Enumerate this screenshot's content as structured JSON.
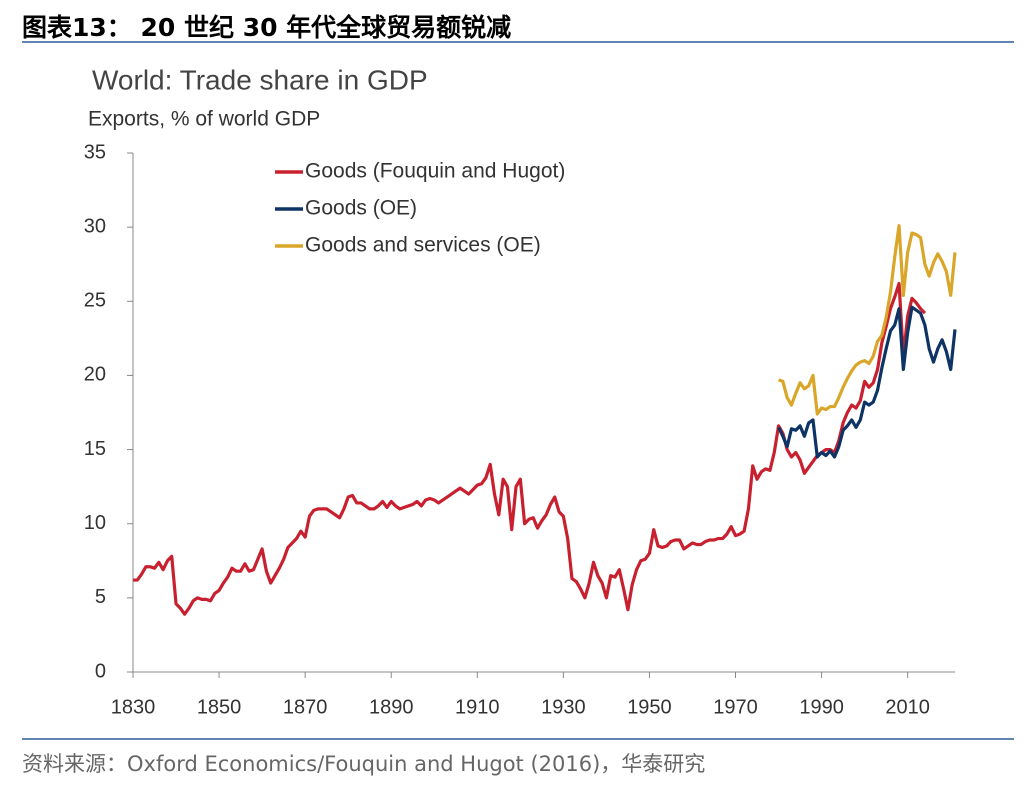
{
  "header": {
    "title": "图表13： 20 世纪 30 年代全球贸易额锐减"
  },
  "footer": {
    "source": "资料来源：Oxford Economics/Fouquin and Hugot (2016)，华泰研究"
  },
  "chart_data": {
    "type": "line",
    "title": "World: Trade share in GDP",
    "subtitle": "Exports, % of world GDP",
    "xlim": [
      1830,
      2021
    ],
    "xticks": [
      1830,
      1850,
      1870,
      1890,
      1910,
      1930,
      1950,
      1970,
      1990,
      2010
    ],
    "ylim": [
      0,
      35
    ],
    "yticks": [
      0,
      5,
      10,
      15,
      20,
      25,
      30,
      35
    ],
    "grid": false,
    "legend": "upper left",
    "series": [
      {
        "name": "Goods (Fouquin and Hugot)",
        "color": "#c8202f",
        "x": [
          1830,
          1831,
          1832,
          1833,
          1834,
          1835,
          1836,
          1837,
          1838,
          1839,
          1840,
          1841,
          1842,
          1843,
          1844,
          1845,
          1846,
          1847,
          1848,
          1849,
          1850,
          1851,
          1852,
          1853,
          1854,
          1855,
          1856,
          1857,
          1858,
          1859,
          1860,
          1861,
          1862,
          1863,
          1864,
          1865,
          1866,
          1867,
          1868,
          1869,
          1870,
          1871,
          1872,
          1873,
          1874,
          1875,
          1876,
          1877,
          1878,
          1879,
          1880,
          1881,
          1882,
          1883,
          1884,
          1885,
          1886,
          1887,
          1888,
          1889,
          1890,
          1891,
          1892,
          1893,
          1894,
          1895,
          1896,
          1897,
          1898,
          1899,
          1900,
          1901,
          1902,
          1903,
          1904,
          1905,
          1906,
          1907,
          1908,
          1909,
          1910,
          1911,
          1912,
          1913,
          1914,
          1915,
          1916,
          1917,
          1918,
          1919,
          1920,
          1921,
          1922,
          1923,
          1924,
          1925,
          1926,
          1927,
          1928,
          1929,
          1930,
          1931,
          1932,
          1933,
          1934,
          1935,
          1936,
          1937,
          1938,
          1939,
          1940,
          1941,
          1942,
          1943,
          1944,
          1945,
          1946,
          1947,
          1948,
          1949,
          1950,
          1951,
          1952,
          1953,
          1954,
          1955,
          1956,
          1957,
          1958,
          1959,
          1960,
          1961,
          1962,
          1963,
          1964,
          1965,
          1966,
          1967,
          1968,
          1969,
          1970,
          1971,
          1972,
          1973,
          1974,
          1975,
          1976,
          1977,
          1978,
          1979,
          1980,
          1981,
          1982,
          1983,
          1984,
          1985,
          1986,
          1987,
          1988,
          1989,
          1990,
          1991,
          1992,
          1993,
          1994,
          1995,
          1996,
          1997,
          1998,
          1999,
          2000,
          2001,
          2002,
          2003,
          2004,
          2005,
          2006,
          2007,
          2008,
          2009,
          2010,
          2011,
          2012,
          2013,
          2014
        ],
        "values": [
          6.2,
          6.2,
          6.6,
          7.1,
          7.1,
          7.0,
          7.4,
          6.9,
          7.5,
          7.8,
          4.6,
          4.3,
          3.9,
          4.3,
          4.8,
          5.0,
          4.9,
          4.9,
          4.8,
          5.3,
          5.5,
          6.0,
          6.4,
          7.0,
          6.8,
          6.8,
          7.3,
          6.8,
          6.9,
          7.6,
          8.3,
          6.8,
          6.0,
          6.5,
          7.0,
          7.6,
          8.4,
          8.7,
          9.0,
          9.5,
          9.1,
          10.5,
          10.9,
          11.0,
          11.0,
          11.0,
          10.8,
          10.6,
          10.4,
          11.0,
          11.8,
          11.9,
          11.4,
          11.4,
          11.2,
          11.0,
          11.0,
          11.2,
          11.5,
          11.1,
          11.5,
          11.2,
          11.0,
          11.1,
          11.2,
          11.3,
          11.5,
          11.2,
          11.6,
          11.7,
          11.6,
          11.4,
          11.6,
          11.8,
          12.0,
          12.2,
          12.4,
          12.2,
          12.0,
          12.3,
          12.6,
          12.7,
          13.1,
          14.0,
          12.0,
          10.6,
          13.0,
          12.5,
          9.6,
          12.5,
          13.0,
          10.0,
          10.3,
          10.4,
          9.7,
          10.2,
          10.6,
          11.3,
          11.8,
          10.8,
          10.5,
          9.0,
          6.3,
          6.1,
          5.6,
          5.0,
          6.0,
          7.4,
          6.5,
          6.0,
          5.0,
          6.5,
          6.4,
          6.9,
          5.6,
          4.2,
          5.9,
          6.9,
          7.5,
          7.6,
          8.0,
          9.6,
          8.5,
          8.4,
          8.5,
          8.8,
          8.9,
          8.9,
          8.3,
          8.5,
          8.7,
          8.6,
          8.6,
          8.8,
          8.9,
          8.9,
          9.0,
          9.0,
          9.3,
          9.8,
          9.2,
          9.3,
          9.5,
          11.0,
          13.9,
          13.0,
          13.5,
          13.7,
          13.6,
          14.8,
          16.6,
          16.1,
          15.0,
          14.5,
          14.8,
          14.3,
          13.4,
          13.8,
          14.2,
          14.6,
          14.8,
          15.0,
          15.0,
          14.8,
          15.6,
          16.8,
          17.5,
          18.0,
          17.8,
          18.3,
          19.6,
          19.2,
          19.5,
          20.4,
          22.2,
          23.3,
          24.5,
          25.3,
          26.2,
          21.3,
          24.0,
          25.2,
          24.9,
          24.5,
          24.2
        ]
      },
      {
        "name": "Goods (OE)",
        "color": "#0d3465",
        "x": [
          1980,
          1981,
          1982,
          1983,
          1984,
          1985,
          1986,
          1987,
          1988,
          1989,
          1990,
          1991,
          1992,
          1993,
          1994,
          1995,
          1996,
          1997,
          1998,
          1999,
          2000,
          2001,
          2002,
          2003,
          2004,
          2005,
          2006,
          2007,
          2008,
          2009,
          2010,
          2011,
          2012,
          2013,
          2014,
          2015,
          2016,
          2017,
          2018,
          2019,
          2020,
          2021
        ],
        "values": [
          16.5,
          15.9,
          15.2,
          16.4,
          16.3,
          16.6,
          15.9,
          16.8,
          17.0,
          14.5,
          14.8,
          14.6,
          14.9,
          14.5,
          15.2,
          16.3,
          16.6,
          17.0,
          16.5,
          17.0,
          18.2,
          18.0,
          18.2,
          19.0,
          20.5,
          21.8,
          23.0,
          23.4,
          24.5,
          20.4,
          22.9,
          24.6,
          24.4,
          24.2,
          23.4,
          21.8,
          20.9,
          21.8,
          22.4,
          21.6,
          20.4,
          23.1
        ]
      },
      {
        "name": "Goods and services (OE)",
        "color": "#d9a62a",
        "x": [
          1980,
          1981,
          1982,
          1983,
          1984,
          1985,
          1986,
          1987,
          1988,
          1989,
          1990,
          1991,
          1992,
          1993,
          1994,
          1995,
          1996,
          1997,
          1998,
          1999,
          2000,
          2001,
          2002,
          2003,
          2004,
          2005,
          2006,
          2007,
          2008,
          2009,
          2010,
          2011,
          2012,
          2013,
          2014,
          2015,
          2016,
          2017,
          2018,
          2019,
          2020,
          2021
        ],
        "values": [
          19.7,
          19.6,
          18.5,
          18.0,
          18.8,
          19.5,
          19.1,
          19.3,
          20.0,
          17.4,
          17.8,
          17.7,
          17.9,
          17.9,
          18.5,
          19.2,
          19.8,
          20.3,
          20.7,
          20.9,
          21.0,
          20.8,
          21.3,
          22.3,
          22.7,
          23.9,
          25.6,
          28.0,
          30.1,
          25.4,
          28.3,
          29.6,
          29.5,
          29.3,
          27.5,
          26.7,
          27.6,
          28.2,
          27.7,
          27.0,
          25.4,
          28.3
        ]
      }
    ]
  }
}
